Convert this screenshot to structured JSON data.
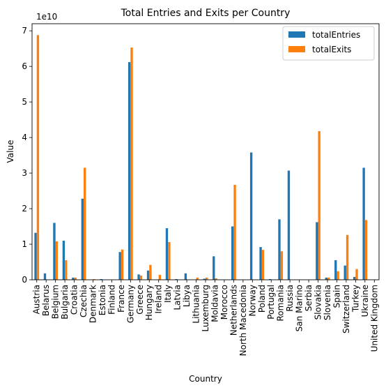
{
  "chart_data": {
    "type": "bar",
    "title": "Total Entries and Exits per Country",
    "xlabel": "Country",
    "ylabel": "Value",
    "offset_text": "1e10",
    "ylim": [
      0,
      7.2
    ],
    "y_ticks": [
      "0",
      "1",
      "2",
      "3",
      "4",
      "5",
      "6",
      "7"
    ],
    "y_tick_values": [
      0,
      1,
      2,
      3,
      4,
      5,
      6,
      7
    ],
    "grid": false,
    "legend_position": "top-right",
    "categories": [
      "Austria",
      "Belarus",
      "Belgium",
      "Bulgaria",
      "Croatia",
      "Czechia",
      "Denmark",
      "Estonia",
      "Finland",
      "France",
      "Germany",
      "Greece",
      "Hungary",
      "Ireland",
      "Italy",
      "Latvia",
      "Libya",
      "Lithuania",
      "Luxemburg",
      "Moldavia",
      "Morocco",
      "Netherlands",
      "North Macedonia",
      "Norway",
      "Poland",
      "Portugal",
      "Romania",
      "Russia",
      "San Marino",
      "Serbia",
      "Slovakia",
      "Slovenia",
      "Spain",
      "Switzerland",
      "Turkey",
      "Ukraine",
      "United Kingdom"
    ],
    "series": [
      {
        "name": "totalEntries",
        "color": "#1f77b4",
        "values": [
          1.32,
          0.18,
          1.6,
          1.1,
          0.06,
          2.28,
          0.0,
          0.02,
          0.0,
          0.78,
          6.12,
          0.15,
          0.26,
          0.0,
          1.45,
          0.02,
          0.18,
          0.0,
          0.03,
          0.66,
          0.0,
          1.5,
          0.0,
          3.58,
          0.92,
          0.02,
          1.7,
          3.07,
          0.0,
          0.0,
          1.62,
          0.06,
          0.55,
          0.4,
          0.08,
          3.15,
          0.0
        ]
      },
      {
        "name": "totalExits",
        "color": "#ff7f0e",
        "values": [
          6.88,
          0.0,
          1.08,
          0.55,
          0.06,
          3.15,
          0.02,
          0.0,
          0.0,
          0.85,
          6.53,
          0.12,
          0.42,
          0.14,
          1.06,
          0.0,
          0.0,
          0.06,
          0.06,
          0.04,
          0.0,
          2.67,
          0.0,
          0.0,
          0.84,
          0.0,
          0.8,
          0.0,
          0.0,
          0.0,
          4.18,
          0.06,
          0.24,
          1.26,
          0.3,
          1.68,
          0.0
        ]
      }
    ]
  }
}
